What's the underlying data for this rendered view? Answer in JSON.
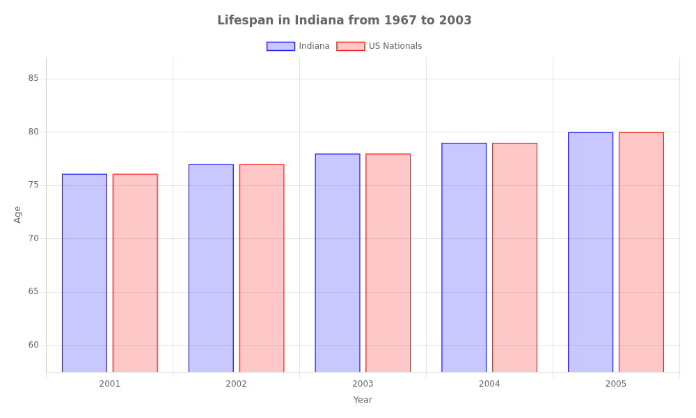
{
  "chart_data": {
    "type": "bar",
    "title": "Lifespan in Indiana from 1967 to 2003",
    "xlabel": "Year",
    "ylabel": "Age",
    "categories": [
      "2001",
      "2002",
      "2003",
      "2004",
      "2005"
    ],
    "series": [
      {
        "name": "Indiana",
        "color": "#2222ff",
        "values": [
          76.1,
          77.0,
          78.0,
          79.0,
          80.0
        ]
      },
      {
        "name": "US Nationals",
        "color": "#ff2222",
        "values": [
          76.1,
          77.0,
          78.0,
          79.0,
          80.0
        ]
      }
    ],
    "ylim": [
      57.5,
      87
    ],
    "yticks": [
      60,
      65,
      70,
      75,
      80,
      85
    ],
    "grid": true,
    "legend": "top"
  }
}
